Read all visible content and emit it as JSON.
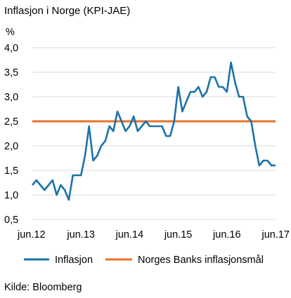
{
  "chart_data": {
    "type": "line",
    "title": "Inflasjon i Norge (KPI-JAE)",
    "y_unit_label": "%",
    "ylim": [
      0.5,
      4.0
    ],
    "yticks": [
      0.5,
      1.0,
      1.5,
      2.0,
      2.5,
      3.0,
      3.5,
      4.0
    ],
    "ytick_labels": [
      "0,5",
      "1,0",
      "1,5",
      "2,0",
      "2,5",
      "3,0",
      "3,5",
      "4,0"
    ],
    "x_tick_labels": [
      "jun.12",
      "jun.13",
      "jun.14",
      "jun.15",
      "jun.16",
      "jun.17"
    ],
    "x_tick_dates": [
      "2012-06",
      "2013-06",
      "2014-06",
      "2015-06",
      "2016-06",
      "2017-06"
    ],
    "xlim": [
      "2012-06",
      "2017-06"
    ],
    "grid": true,
    "legend_position": "bottom",
    "series": [
      {
        "name": "Inflasjon",
        "color": "#1c73a8",
        "x": [
          "2012-06",
          "2012-07",
          "2012-08",
          "2012-09",
          "2012-10",
          "2012-11",
          "2012-12",
          "2013-01",
          "2013-02",
          "2013-03",
          "2013-04",
          "2013-05",
          "2013-06",
          "2013-07",
          "2013-08",
          "2013-09",
          "2013-10",
          "2013-11",
          "2013-12",
          "2014-01",
          "2014-02",
          "2014-03",
          "2014-04",
          "2014-05",
          "2014-06",
          "2014-07",
          "2014-08",
          "2014-09",
          "2014-10",
          "2014-11",
          "2014-12",
          "2015-01",
          "2015-02",
          "2015-03",
          "2015-04",
          "2015-05",
          "2015-06",
          "2015-07",
          "2015-08",
          "2015-09",
          "2015-10",
          "2015-11",
          "2015-12",
          "2016-01",
          "2016-02",
          "2016-03",
          "2016-04",
          "2016-05",
          "2016-06",
          "2016-07",
          "2016-08",
          "2016-09",
          "2016-10",
          "2016-11",
          "2016-12",
          "2017-01",
          "2017-02",
          "2017-03",
          "2017-04",
          "2017-05",
          "2017-06"
        ],
        "values": [
          1.2,
          1.3,
          1.2,
          1.1,
          1.2,
          1.3,
          1.0,
          1.2,
          1.1,
          0.9,
          1.4,
          1.4,
          1.4,
          1.8,
          2.4,
          1.7,
          1.8,
          2.0,
          2.1,
          2.4,
          2.3,
          2.7,
          2.5,
          2.3,
          2.4,
          2.6,
          2.3,
          2.4,
          2.5,
          2.4,
          2.4,
          2.4,
          2.4,
          2.2,
          2.2,
          2.5,
          3.2,
          2.7,
          2.9,
          3.1,
          3.1,
          3.2,
          3.0,
          3.1,
          3.4,
          3.4,
          3.2,
          3.2,
          3.1,
          3.7,
          3.3,
          3.0,
          3.0,
          2.6,
          2.5,
          2.0,
          1.6,
          1.7,
          1.7,
          1.6,
          1.6
        ]
      },
      {
        "name": "Norges Banks inflasjonsmål",
        "color": "#e8732a",
        "x": [
          "2012-06",
          "2017-06"
        ],
        "values": [
          2.5,
          2.5
        ]
      }
    ],
    "source": "Kilde: Bloomberg"
  }
}
